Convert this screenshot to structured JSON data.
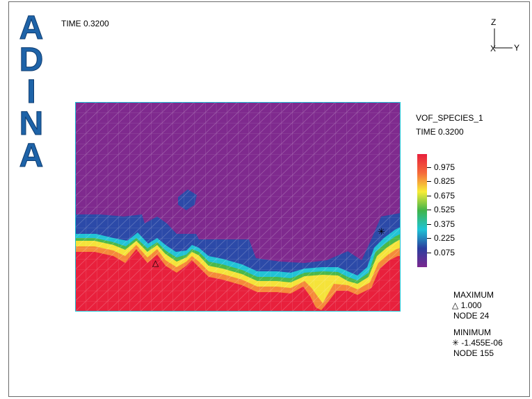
{
  "logo": {
    "letters": [
      "A",
      "D",
      "I",
      "N",
      "A"
    ]
  },
  "header": {
    "time_label": "TIME 0.3200"
  },
  "axes": {
    "z": "Z",
    "y": "Y",
    "x": "X"
  },
  "legend": {
    "variable": "VOF_SPECIES_1",
    "time": "TIME 0.3200",
    "ticks": [
      "0.975",
      "0.825",
      "0.675",
      "0.525",
      "0.375",
      "0.225",
      "0.075"
    ],
    "colors": [
      "#e8203c",
      "#f56a3a",
      "#f7ec37",
      "#3fb44a",
      "#1ec4d6",
      "#2a3e9e",
      "#7b2890"
    ]
  },
  "extremes": {
    "maximum_label": "MAXIMUM",
    "maximum_symbol": "△",
    "maximum_value": "1.000",
    "maximum_node": "NODE 24",
    "minimum_label": "MINIMUM",
    "minimum_symbol": "✳",
    "minimum_value": "-1.455E-06",
    "minimum_node": "NODE 155"
  },
  "field_colors": {
    "purple": "#7f2a8e",
    "red": "#e8203c",
    "orange": "#f58a3a",
    "yellow": "#f5e33a",
    "green": "#4cb84a",
    "cyan": "#22c3d6",
    "blue": "#2c4aa8",
    "mesh": "#c9b6d0",
    "border": "#1ec4d6"
  }
}
